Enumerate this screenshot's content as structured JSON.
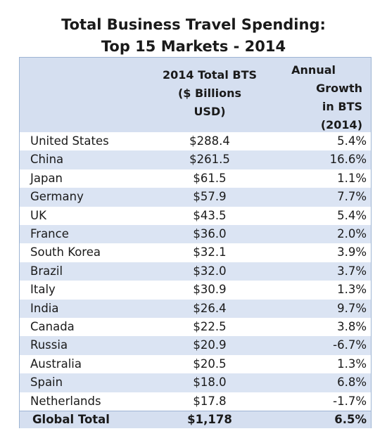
{
  "title": {
    "line1": "Total Business Travel Spending:",
    "line2": "Top 15 Markets - 2014"
  },
  "header": {
    "bts": [
      "2014 Total BTS",
      "($ Billions",
      "USD)"
    ],
    "growth": [
      "Annual",
      "Growth",
      "in BTS",
      "(2014)"
    ]
  },
  "rows": [
    {
      "country": "United States",
      "bts": "$288.4",
      "growth": "5.4%"
    },
    {
      "country": "China",
      "bts": "$261.5",
      "growth": "16.6%"
    },
    {
      "country": "Japan",
      "bts": "$61.5",
      "growth": "1.1%"
    },
    {
      "country": "Germany",
      "bts": "$57.9",
      "growth": "7.7%"
    },
    {
      "country": "UK",
      "bts": "$43.5",
      "growth": "5.4%"
    },
    {
      "country": "France",
      "bts": "$36.0",
      "growth": "2.0%"
    },
    {
      "country": "South Korea",
      "bts": "$32.1",
      "growth": "3.9%"
    },
    {
      "country": "Brazil",
      "bts": "$32.0",
      "growth": "3.7%"
    },
    {
      "country": "Italy",
      "bts": "$30.9",
      "growth": "1.3%"
    },
    {
      "country": "India",
      "bts": "$26.4",
      "growth": "9.7%"
    },
    {
      "country": "Canada",
      "bts": "$22.5",
      "growth": "3.8%"
    },
    {
      "country": "Russia",
      "bts": "$20.9",
      "growth": "-6.7%"
    },
    {
      "country": "Australia",
      "bts": "$20.5",
      "growth": "1.3%"
    },
    {
      "country": "Spain",
      "bts": "$18.0",
      "growth": "6.8%"
    },
    {
      "country": "Netherlands",
      "bts": "$17.8",
      "growth": "-1.7%"
    }
  ],
  "total": {
    "country": "Global Total",
    "bts": "$1,178",
    "growth": "6.5%"
  },
  "colors": {
    "header_fill": "#d5dff0",
    "stripe_fill": "#dbe4f3",
    "border": "#9db4d3"
  }
}
